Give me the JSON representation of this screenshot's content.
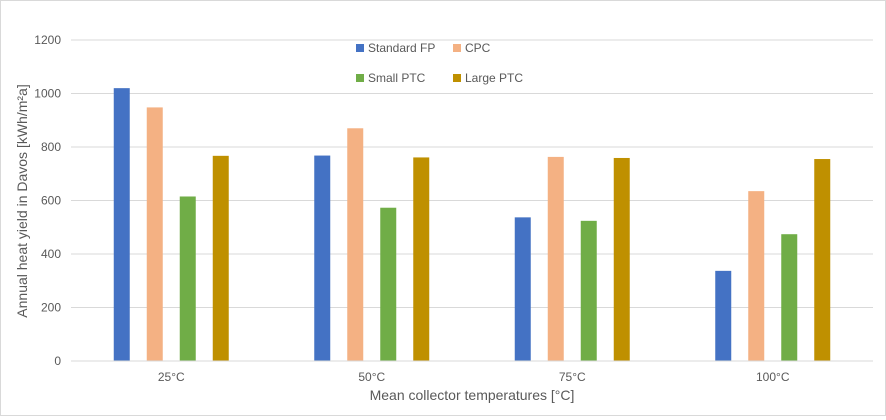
{
  "chart_data": {
    "type": "bar",
    "title": "",
    "xlabel": "Mean collector temperatures [°C]",
    "ylabel": "Annual heat yield in Davos [kWh/m²a]",
    "categories": [
      "25°C",
      "50°C",
      "75°C",
      "100°C"
    ],
    "yticks": [
      "0",
      "200",
      "400",
      "600",
      "800",
      "1000",
      "1200"
    ],
    "ylim": [
      0,
      1200
    ],
    "grid": true,
    "legend_position": "top-center",
    "series": [
      {
        "name": "Standard FP",
        "color": "#4472c4",
        "values": [
          1020,
          768,
          537,
          337
        ]
      },
      {
        "name": "CPC",
        "color": "#f4b183",
        "values": [
          948,
          870,
          763,
          635
        ]
      },
      {
        "name": "Small PTC",
        "color": "#70ad47",
        "values": [
          615,
          573,
          524,
          474
        ]
      },
      {
        "name": "Large PTC",
        "color": "#bf9000",
        "values": [
          767,
          761,
          759,
          755
        ]
      }
    ]
  }
}
